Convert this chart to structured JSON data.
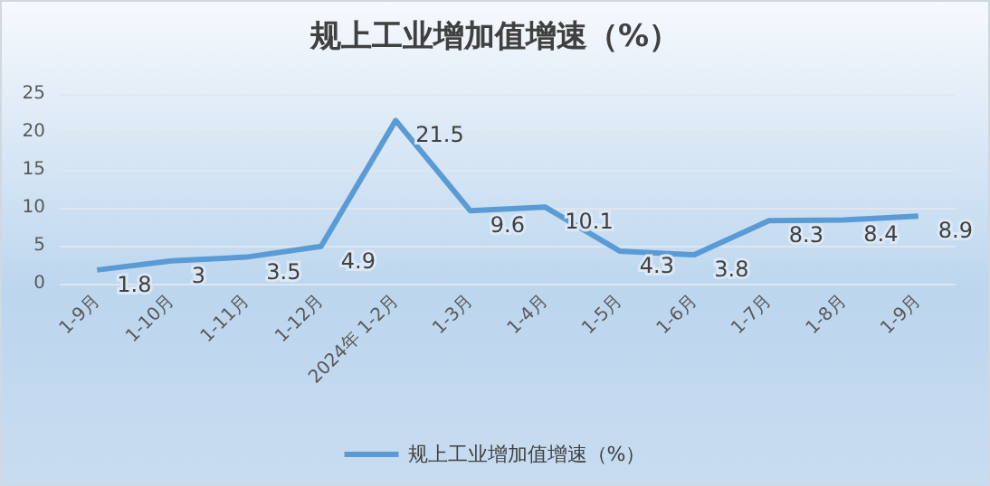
{
  "chart_data": {
    "type": "line",
    "title": "规上工业增加值增速（%）",
    "categories": [
      "1-9月",
      "1-10月",
      "1-11月",
      "1-12月",
      "2024年 1-2月",
      "1-3月",
      "1-4月",
      "1-5月",
      "1-6月",
      "1-7月",
      "1-8月",
      "1-9月"
    ],
    "series": [
      {
        "name": "规上工业增加值增速（%）",
        "color": "#5b9bd5",
        "values": [
          1.8,
          3,
          3.5,
          4.9,
          21.5,
          9.6,
          10.1,
          4.3,
          3.8,
          8.3,
          8.4,
          8.9
        ]
      }
    ],
    "ylim": [
      0,
      25
    ],
    "yticks": [
      0,
      5,
      10,
      15,
      20,
      25
    ],
    "grid": "y",
    "legend": "bottom",
    "data_labels": true,
    "marker": "none",
    "line_style": "solid"
  }
}
